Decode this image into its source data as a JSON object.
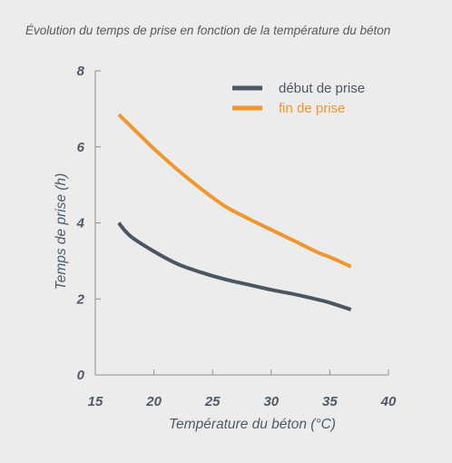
{
  "chart_data": {
    "type": "line",
    "title": "Évolution du temps de prise en fonction de la température du béton",
    "xlabel": "Température du béton (°C)",
    "ylabel": "Temps de prise (h)",
    "xlim": [
      15,
      40
    ],
    "ylim": [
      0,
      8
    ],
    "xticks": [
      "15",
      "20",
      "25",
      "30",
      "35",
      "40"
    ],
    "yticks": [
      "0",
      "2",
      "4",
      "6",
      "8"
    ],
    "legend_position": "top-right",
    "grid": false,
    "series": [
      {
        "name": "début de prise",
        "color": "#4b5663",
        "points": [
          [
            17,
            4.0
          ],
          [
            18,
            3.65
          ],
          [
            20,
            3.25
          ],
          [
            22,
            2.92
          ],
          [
            24,
            2.7
          ],
          [
            26,
            2.52
          ],
          [
            28,
            2.38
          ],
          [
            30,
            2.24
          ],
          [
            32,
            2.12
          ],
          [
            34,
            1.98
          ],
          [
            35,
            1.9
          ],
          [
            36.8,
            1.72
          ]
        ]
      },
      {
        "name": "fin de prise",
        "color": "#f0962e",
        "points": [
          [
            17,
            6.85
          ],
          [
            18,
            6.55
          ],
          [
            20,
            5.95
          ],
          [
            22,
            5.4
          ],
          [
            24,
            4.9
          ],
          [
            26,
            4.45
          ],
          [
            28,
            4.12
          ],
          [
            30,
            3.82
          ],
          [
            32,
            3.52
          ],
          [
            34,
            3.22
          ],
          [
            35,
            3.1
          ],
          [
            36.8,
            2.85
          ]
        ]
      }
    ]
  }
}
